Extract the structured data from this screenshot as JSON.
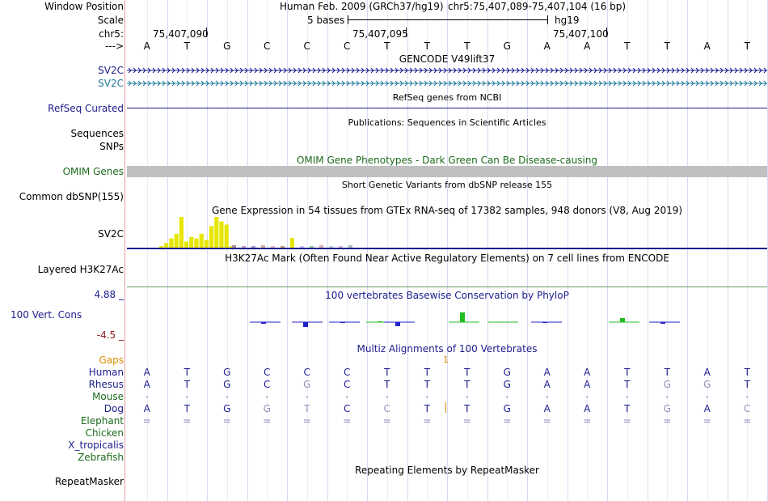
{
  "position": {
    "label": "Window Position",
    "assembly": "Human Feb. 2009 (GRCh37/hg19)",
    "coords": "chr5:75,407,089-75,407,104 (16 bp)"
  },
  "scale": {
    "label": "Scale",
    "text": "5 bases",
    "db": "hg19"
  },
  "ruler": {
    "label": "chr5:",
    "ticks": [
      "75,407,090",
      "75,407,095",
      "75,407,100"
    ],
    "strand_label": "--->"
  },
  "bases": [
    "A",
    "T",
    "G",
    "C",
    "C",
    "C",
    "T",
    "T",
    "T",
    "G",
    "A",
    "A",
    "T",
    "T",
    "A",
    "T"
  ],
  "tracks": {
    "gencode": {
      "title": "GENCODE V49lift37",
      "genes": [
        "SV2C",
        "SV2C"
      ]
    },
    "refseq": {
      "title": "RefSeq genes from NCBI",
      "label": "RefSeq Curated"
    },
    "pubs": {
      "title": "Publications: Sequences in Scientific Articles",
      "labels": [
        "Sequences",
        "SNPs"
      ]
    },
    "omim": {
      "title": "OMIM Gene Phenotypes - Dark Green Can Be Disease-causing",
      "label": "OMIM Genes"
    },
    "dbsnp": {
      "title": "Short Genetic Variants from dbSNP release 155",
      "label": "Common dbSNP(155)"
    },
    "gtex": {
      "title": "Gene Expression in 54 tissues from GTEx RNA-seq of 17382 samples, 948 donors (V8, Aug 2019)",
      "label": "SV2C",
      "bar_color": "#e6e600",
      "levels": [
        0.05,
        0.15,
        0.3,
        0.45,
        1.0,
        0.2,
        0.35,
        0.3,
        0.45,
        0.25,
        0.7,
        1.0,
        0.85,
        0.75,
        0.05
      ]
    },
    "h3k27ac": {
      "title": "H3K27Ac Mark (Often Found Near Active Regulatory Elements) on 7 cell lines from ENCODE",
      "label": "Layered H3K27Ac"
    },
    "phylop": {
      "title": "100 vertebrates Basewise Conservation by PhyloP",
      "label": "100 Vert. Cons",
      "max": "4.88 _",
      "min": "-4.5 _",
      "values": [
        -0.2,
        -0.6,
        -0.1,
        0.1,
        -0.5,
        1.2,
        0.05,
        -0.05,
        0.5,
        -0.2
      ],
      "color_pos": "#22bb22",
      "color_neg": "#2222cc"
    },
    "multiz": {
      "title": "Multiz Alignments of 100 Vertebrates",
      "gaps_label": "Gaps",
      "gaps_marker": "1",
      "species": [
        {
          "name": "Human",
          "color": "#1c1c8c",
          "seq": [
            "A",
            "T",
            "G",
            "C",
            "C",
            "C",
            "T",
            "T",
            "T",
            "G",
            "A",
            "A",
            "T",
            "T",
            "A",
            "T"
          ]
        },
        {
          "name": "Rhesus",
          "color": "#1c1c8c",
          "seq": [
            "A",
            "T",
            "G",
            "C",
            "G",
            "C",
            "T",
            "T",
            "T",
            "G",
            "A",
            "A",
            "T",
            "G",
            "G",
            "T"
          ]
        },
        {
          "name": "Mouse",
          "color": "#1c6b1c",
          "seq": [
            "-",
            "-",
            "-",
            "-",
            "-",
            "-",
            "-",
            "-",
            "-",
            "-",
            "-",
            "-",
            "-",
            "-",
            "-",
            "-"
          ]
        },
        {
          "name": "Dog",
          "color": "#1c1c8c",
          "seq": [
            "A",
            "T",
            "G",
            "G",
            "T",
            "C",
            "C",
            "T",
            "T",
            "G",
            "A",
            "A",
            "T",
            "G",
            "A",
            "C"
          ]
        },
        {
          "name": "Elephant",
          "color": "#1c6b1c",
          "seq": [
            "=",
            "=",
            "=",
            "=",
            "=",
            "=",
            "=",
            "=",
            "=",
            "=",
            "=",
            "=",
            "=",
            "=",
            "=",
            "="
          ]
        },
        {
          "name": "Chicken",
          "color": "#1c6b1c",
          "seq": []
        },
        {
          "name": "X_tropicalis",
          "color": "#1c1c8c",
          "seq": []
        },
        {
          "name": "Zebrafish",
          "color": "#1c6b1c",
          "seq": []
        }
      ]
    },
    "rmsk": {
      "title": "Repeating Elements by RepeatMasker",
      "label": "RepeatMasker"
    }
  }
}
